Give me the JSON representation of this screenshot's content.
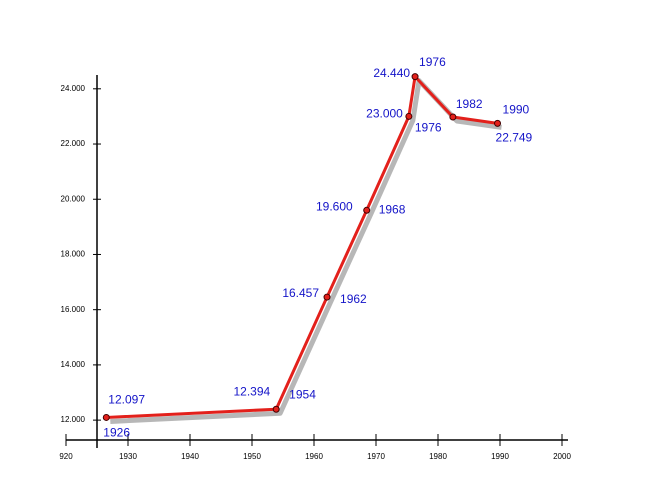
{
  "chart_data": {
    "type": "line",
    "x": [
      1926.5,
      1953.9,
      1962.1,
      1968.5,
      1975.3,
      1976.3,
      1982.4,
      1989.6
    ],
    "series": [
      {
        "color": "#e3201b",
        "values": [
          12.097,
          12.394,
          16.457,
          19.6,
          23.0,
          24.44,
          22.98,
          22.749
        ],
        "value_labels": [
          "12.097",
          "12.394",
          "16.457",
          "19.600",
          "23.000",
          "24.440",
          null,
          "22.749"
        ],
        "year_labels": [
          "1926",
          "1954",
          "1962",
          "1968",
          "1976",
          "1976",
          "1982",
          "1990"
        ]
      }
    ],
    "label_color": "#1414c8",
    "xlim": [
      1920,
      2000
    ],
    "xticks": [
      {
        "value": 1920,
        "label": "920"
      },
      1930,
      1940,
      1950,
      1960,
      1970,
      1980,
      1990,
      2000
    ],
    "ylim": [
      11.28,
      24.5
    ],
    "yticks": [
      {
        "value": 12,
        "label": "12.000"
      },
      {
        "value": 14,
        "label": "14.000"
      },
      {
        "value": 16,
        "label": "16.000"
      },
      {
        "value": 18,
        "label": "18.000"
      },
      {
        "value": 20,
        "label": "20.000"
      },
      {
        "value": 22,
        "label": "22.000"
      },
      {
        "value": 24,
        "label": "24.000"
      }
    ],
    "shadow": true
  }
}
